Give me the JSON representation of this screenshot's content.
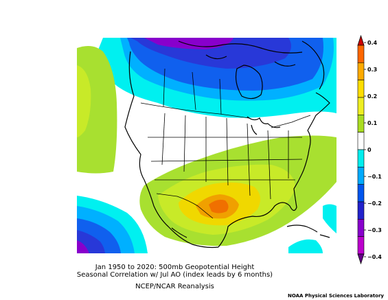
{
  "title_line1": "Jan 1950 to 2020: 500mb Geopotential Height",
  "title_line2": "Seasonal Correlation w/ Jul AO (index leads by 6 months)",
  "source": "NCEP/NCAR Reanalysis",
  "credit": "NOAA Physical Sciences Laboratory",
  "colorbar": {
    "labels": [
      "0.4",
      "0.3",
      "0.2",
      "0.1",
      "0",
      "−0.1",
      "−0.2",
      "−0.3",
      "−0.4"
    ],
    "levels": [
      0.4,
      0.3,
      0.2,
      0.1,
      0,
      -0.1,
      -0.2,
      -0.3,
      -0.4
    ],
    "colors": [
      "#cc0000",
      "#ff6600",
      "#ffaa00",
      "#ffdd00",
      "#eeee22",
      "#aadd22",
      "#ffffff",
      "#00eeee",
      "#00aaff",
      "#0055ee",
      "#2222cc",
      "#8800cc",
      "#bb00cc",
      "#660088"
    ]
  },
  "palette": {
    "white": "#ffffff",
    "cyan": "#00f0f0",
    "lightblue": "#00b0ff",
    "blue": "#1060ee",
    "darkblue": "#2838d8",
    "purple": "#8800cc",
    "magenta": "#b000d8",
    "lightgreen": "#a8e030",
    "yellowgreen": "#c8ea28",
    "yellow": "#f0d800",
    "orange": "#f0a000",
    "deeporange": "#f07000"
  }
}
